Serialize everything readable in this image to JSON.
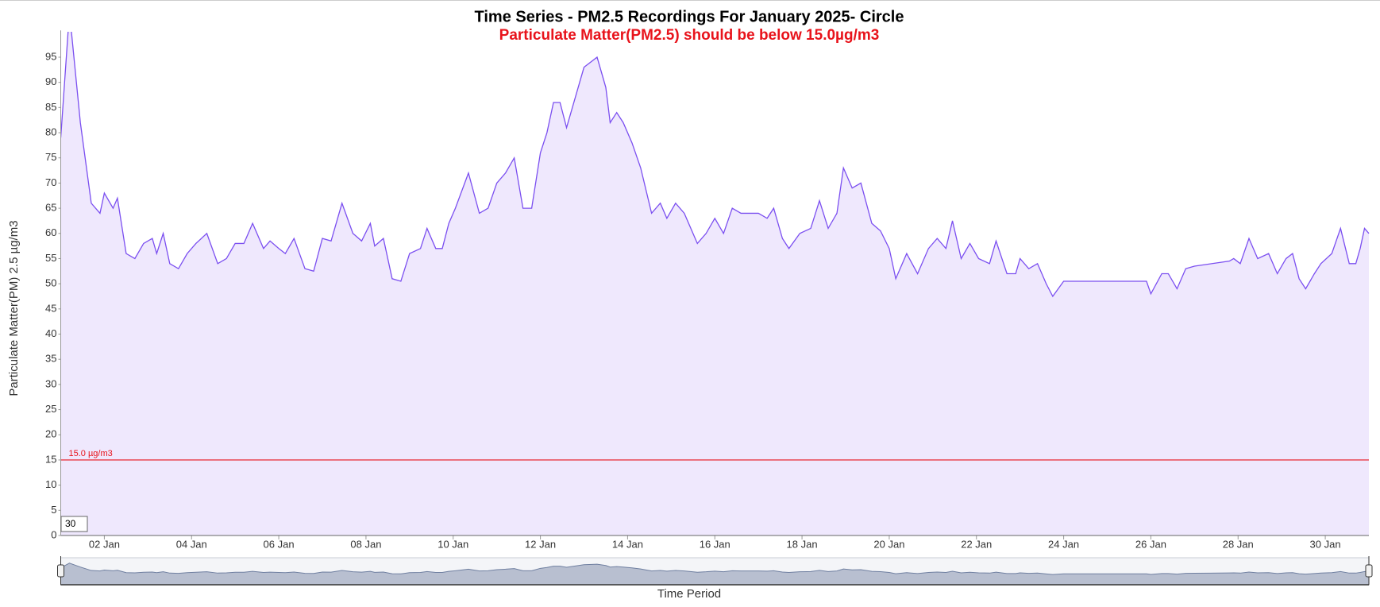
{
  "chart_data": {
    "type": "area",
    "title": "Time Series - PM2.5 Recordings For January 2025- Circle",
    "subtitle": "Particulate Matter(PM2.5) should be below 15.0µg/m3",
    "y_label": "Particulate Matter(PM) 2.5 µg/m3",
    "x_label": "Time Period",
    "color": "#7b4ff0",
    "fill": "#efe8fd",
    "threshold": {
      "value": 15,
      "label": "15.0 µg/m3",
      "color": "#e8131b"
    },
    "range_input": "30",
    "xlim": [
      1,
      31
    ],
    "ylim": [
      0,
      100
    ],
    "xticks": [
      {
        "value": 2,
        "label": "02 Jan"
      },
      {
        "value": 4,
        "label": "04 Jan"
      },
      {
        "value": 6,
        "label": "06 Jan"
      },
      {
        "value": 8,
        "label": "08 Jan"
      },
      {
        "value": 10,
        "label": "10 Jan"
      },
      {
        "value": 12,
        "label": "12 Jan"
      },
      {
        "value": 14,
        "label": "14 Jan"
      },
      {
        "value": 16,
        "label": "16 Jan"
      },
      {
        "value": 18,
        "label": "18 Jan"
      },
      {
        "value": 20,
        "label": "20 Jan"
      },
      {
        "value": 22,
        "label": "22 Jan"
      },
      {
        "value": 24,
        "label": "24 Jan"
      },
      {
        "value": 26,
        "label": "26 Jan"
      },
      {
        "value": 28,
        "label": "28 Jan"
      },
      {
        "value": 30,
        "label": "30 Jan"
      }
    ],
    "yticks": [
      0,
      5,
      10,
      15,
      20,
      25,
      30,
      35,
      40,
      45,
      50,
      55,
      60,
      65,
      70,
      75,
      80,
      85,
      90,
      95
    ],
    "x": [
      1.0,
      1.2,
      1.45,
      1.7,
      1.9,
      2.0,
      2.2,
      2.3,
      2.5,
      2.7,
      2.9,
      3.1,
      3.2,
      3.35,
      3.5,
      3.7,
      3.9,
      4.1,
      4.35,
      4.6,
      4.8,
      5.0,
      5.2,
      5.4,
      5.65,
      5.8,
      6.0,
      6.15,
      6.35,
      6.6,
      6.8,
      7.0,
      7.2,
      7.45,
      7.7,
      7.9,
      8.1,
      8.2,
      8.4,
      8.6,
      8.8,
      9.0,
      9.25,
      9.4,
      9.6,
      9.75,
      9.9,
      10.05,
      10.35,
      10.6,
      10.8,
      11.0,
      11.2,
      11.4,
      11.6,
      11.8,
      12.0,
      12.15,
      12.3,
      12.45,
      12.6,
      12.8,
      13.0,
      13.3,
      13.5,
      13.6,
      13.75,
      13.9,
      14.1,
      14.3,
      14.55,
      14.75,
      14.9,
      15.1,
      15.3,
      15.6,
      15.8,
      16.0,
      16.2,
      16.4,
      16.6,
      16.85,
      17.0,
      17.2,
      17.35,
      17.55,
      17.7,
      17.95,
      18.2,
      18.4,
      18.6,
      18.8,
      18.95,
      19.15,
      19.35,
      19.6,
      19.8,
      20.0,
      20.15,
      20.4,
      20.65,
      20.9,
      21.1,
      21.3,
      21.45,
      21.65,
      21.85,
      22.05,
      22.3,
      22.45,
      22.7,
      22.9,
      23.0,
      23.2,
      23.4,
      23.6,
      23.75,
      24.0,
      25.0,
      25.9,
      26.0,
      26.25,
      26.4,
      26.6,
      26.8,
      27.0,
      27.8,
      27.9,
      28.05,
      28.25,
      28.45,
      28.7,
      28.9,
      29.1,
      29.25,
      29.4,
      29.55,
      29.75,
      29.9,
      30.15,
      30.35,
      30.55,
      30.7,
      30.8,
      30.9,
      31.0
    ],
    "values": [
      79,
      104,
      82,
      66,
      64,
      68,
      65,
      67,
      56,
      55,
      58,
      59,
      56,
      60,
      54,
      53,
      56,
      58,
      60,
      54,
      55,
      58,
      58,
      62,
      57,
      58.5,
      57,
      56,
      59,
      53,
      52.5,
      59,
      58.5,
      66,
      60,
      58.5,
      62,
      57.5,
      59,
      51,
      50.5,
      56,
      57,
      61,
      57,
      57,
      62,
      65,
      72,
      64,
      65,
      70,
      72,
      75,
      65,
      65,
      76,
      80,
      86,
      86,
      81,
      87,
      93,
      95,
      89,
      82,
      84,
      82,
      78,
      73,
      64,
      66,
      63,
      66,
      64,
      58,
      60,
      63,
      60,
      65,
      64,
      64,
      64,
      63,
      65,
      59,
      57,
      60,
      61,
      66.5,
      61,
      64,
      73,
      69,
      70,
      62,
      60.5,
      57,
      51,
      56,
      52,
      57,
      59,
      57,
      62.5,
      55,
      58,
      55,
      54,
      58.5,
      52,
      52,
      55,
      53,
      54,
      50,
      47.5,
      50.5,
      50.5,
      50.5,
      48,
      52,
      52,
      49,
      53,
      53.5,
      54.5,
      55,
      54,
      59,
      55,
      56,
      52,
      55,
      56,
      51,
      49,
      52,
      54,
      56,
      61,
      54,
      54,
      57,
      61,
      60
    ]
  }
}
